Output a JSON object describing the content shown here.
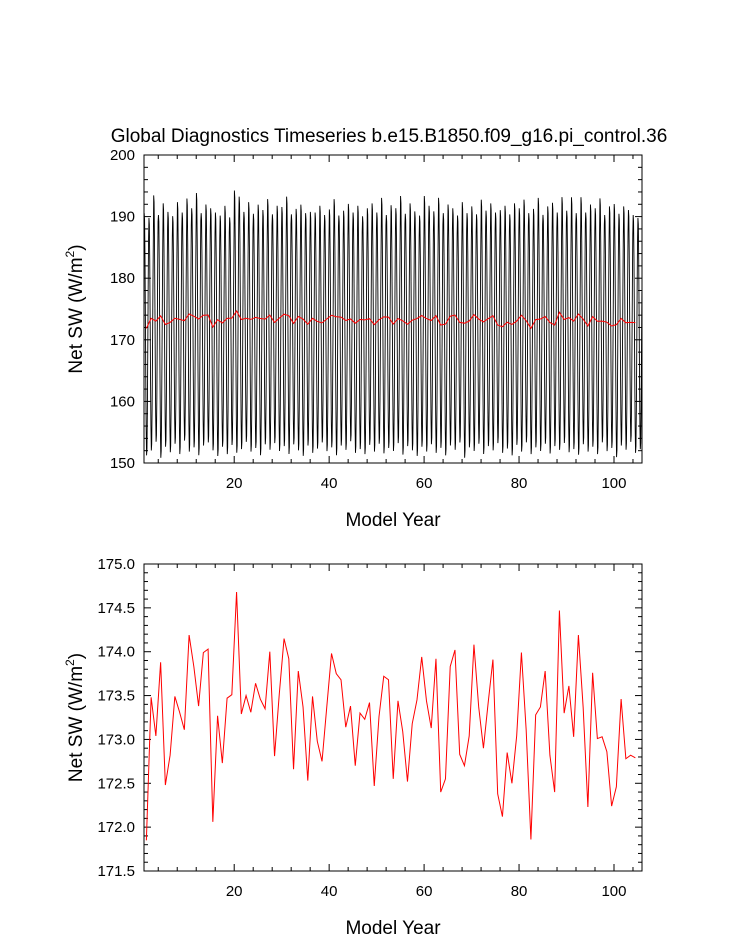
{
  "figure": {
    "title": "Global Diagnostics Timeseries b.e15.B1850.f09_g16.pi_control.36"
  },
  "chart_data": [
    {
      "type": "line",
      "title": "Global Diagnostics Timeseries b.e15.B1850.f09_g16.pi_control.36",
      "xlabel": "Model Year",
      "ylabel_main": "Net SW (W/m",
      "ylabel_sup": "2",
      "ylabel_tail": ")",
      "xlim": [
        1,
        105.9
      ],
      "ylim": [
        150,
        200
      ],
      "xticks": [
        20,
        40,
        60,
        80,
        100
      ],
      "yticks": [
        150,
        160,
        170,
        180,
        190,
        200
      ],
      "grid": false,
      "series": [
        {
          "kind": "monthly",
          "color": "#000000",
          "note_values": "monthly values oscillate with annual cycle between seasonal minima and maxima",
          "annual_max": [
            190.8,
            190.0,
            193.7,
            190.5,
            192.4,
            191.0,
            190.3,
            192.6,
            190.9,
            193.2,
            191.6,
            194.1,
            190.8,
            192.2,
            191.6,
            190.9,
            190.4,
            192.0,
            190.1,
            194.5,
            193.5,
            191.0,
            192.6,
            190.7,
            192.2,
            191.3,
            193.1,
            190.6,
            192.0,
            191.8,
            193.5,
            190.6,
            191.5,
            192.2,
            190.8,
            191.0,
            190.9,
            192.0,
            190.5,
            191.4,
            193.1,
            190.4,
            191.2,
            192.3,
            190.9,
            192.0,
            190.3,
            191.6,
            192.4,
            190.9,
            193.3,
            190.5,
            192.1,
            191.6,
            193.6,
            190.7,
            192.4,
            191.1,
            190.4,
            193.6,
            192.0,
            191.1,
            193.3,
            190.8,
            192.2,
            191.6,
            190.4,
            192.6,
            190.8,
            191.9,
            190.6,
            193.0,
            191.2,
            192.4,
            190.9,
            191.3,
            192.0,
            190.6,
            192.4,
            191.6,
            193.0,
            190.8,
            191.5,
            193.3,
            190.5,
            191.9,
            192.5,
            190.9,
            193.4,
            191.2,
            193.4,
            190.8,
            193.4,
            190.9,
            192.2,
            191.6,
            193.2,
            190.5,
            191.9,
            192.3,
            190.7,
            191.9,
            191.3,
            190.5,
            190.0
          ],
          "annual_min": [
            151.0,
            151.8,
            153.2,
            150.6,
            152.4,
            151.5,
            152.9,
            151.2,
            153.4,
            151.6,
            152.3,
            151.0,
            152.6,
            153.1,
            151.8,
            150.9,
            152.4,
            151.2,
            152.7,
            151.4,
            152.0,
            153.2,
            151.6,
            152.2,
            151.0,
            152.8,
            151.9,
            153.0,
            151.7,
            152.5,
            151.2,
            152.8,
            151.8,
            150.9,
            152.6,
            151.4,
            152.1,
            153.1,
            151.7,
            152.3,
            151.0,
            152.6,
            151.9,
            153.3,
            151.4,
            152.0,
            151.2,
            152.7,
            151.6,
            152.9,
            151.3,
            152.2,
            151.7,
            153.0,
            151.1,
            152.5,
            151.8,
            150.9,
            152.4,
            151.6,
            152.8,
            151.4,
            152.2,
            151.0,
            152.6,
            151.9,
            153.1,
            150.6,
            152.3,
            151.7,
            152.9,
            151.2,
            152.5,
            151.8,
            153.0,
            151.4,
            152.1,
            151.0,
            152.7,
            151.6,
            153.1,
            151.2,
            152.3,
            151.7,
            152.9,
            151.3,
            152.5,
            151.9,
            153.0,
            151.5,
            152.0,
            151.1,
            152.8,
            151.6,
            152.4,
            151.2,
            153.1,
            151.7,
            152.2,
            150.7,
            152.6,
            151.9,
            153.2,
            151.4,
            152.0
          ]
        },
        {
          "kind": "annual",
          "color": "#ff0000",
          "values_ref": "annual_mean"
        }
      ]
    },
    {
      "type": "line",
      "title": "",
      "xlabel": "Model Year",
      "ylabel_main": "Net SW (W/m",
      "ylabel_sup": "2",
      "ylabel_tail": ")",
      "xlim": [
        1,
        105.9
      ],
      "ylim": [
        171.5,
        175.0
      ],
      "xticks": [
        20,
        40,
        60,
        80,
        100
      ],
      "yticks": [
        171.5,
        172.0,
        172.5,
        173.0,
        173.5,
        174.0,
        174.5,
        175.0
      ],
      "ytick_labels": [
        "171.5",
        "172.0",
        "172.5",
        "173.0",
        "173.5",
        "174.0",
        "174.5",
        "175.0"
      ],
      "grid": false,
      "series": [
        {
          "kind": "annual",
          "color": "#ff0000",
          "x_start": 1.5,
          "x_step": 1,
          "annual_mean": [
            171.85,
            173.48,
            173.04,
            173.88,
            172.48,
            172.82,
            173.49,
            173.31,
            173.11,
            174.19,
            173.83,
            173.38,
            173.99,
            174.03,
            172.06,
            173.27,
            172.73,
            173.47,
            173.51,
            174.68,
            173.29,
            173.5,
            173.31,
            173.64,
            173.46,
            173.35,
            174.0,
            172.81,
            173.52,
            174.15,
            173.92,
            172.66,
            173.78,
            173.37,
            172.53,
            173.49,
            172.98,
            172.75,
            173.37,
            173.98,
            173.75,
            173.68,
            173.14,
            173.38,
            172.7,
            173.3,
            173.23,
            173.42,
            172.47,
            173.26,
            173.72,
            173.68,
            172.55,
            173.44,
            173.09,
            172.52,
            173.18,
            173.45,
            173.94,
            173.44,
            173.13,
            173.92,
            172.4,
            172.55,
            173.83,
            174.02,
            172.83,
            172.7,
            173.04,
            174.08,
            173.37,
            172.9,
            173.42,
            173.91,
            172.38,
            172.12,
            172.85,
            172.5,
            173.04,
            173.99,
            173.11,
            171.86,
            173.28,
            173.37,
            173.78,
            172.82,
            172.4,
            174.47,
            173.3,
            173.61,
            173.03,
            174.19,
            173.37,
            172.23,
            173.76,
            173.01,
            173.03,
            172.86,
            172.24,
            172.46,
            173.46,
            172.78,
            172.82,
            172.79
          ]
        }
      ]
    }
  ]
}
